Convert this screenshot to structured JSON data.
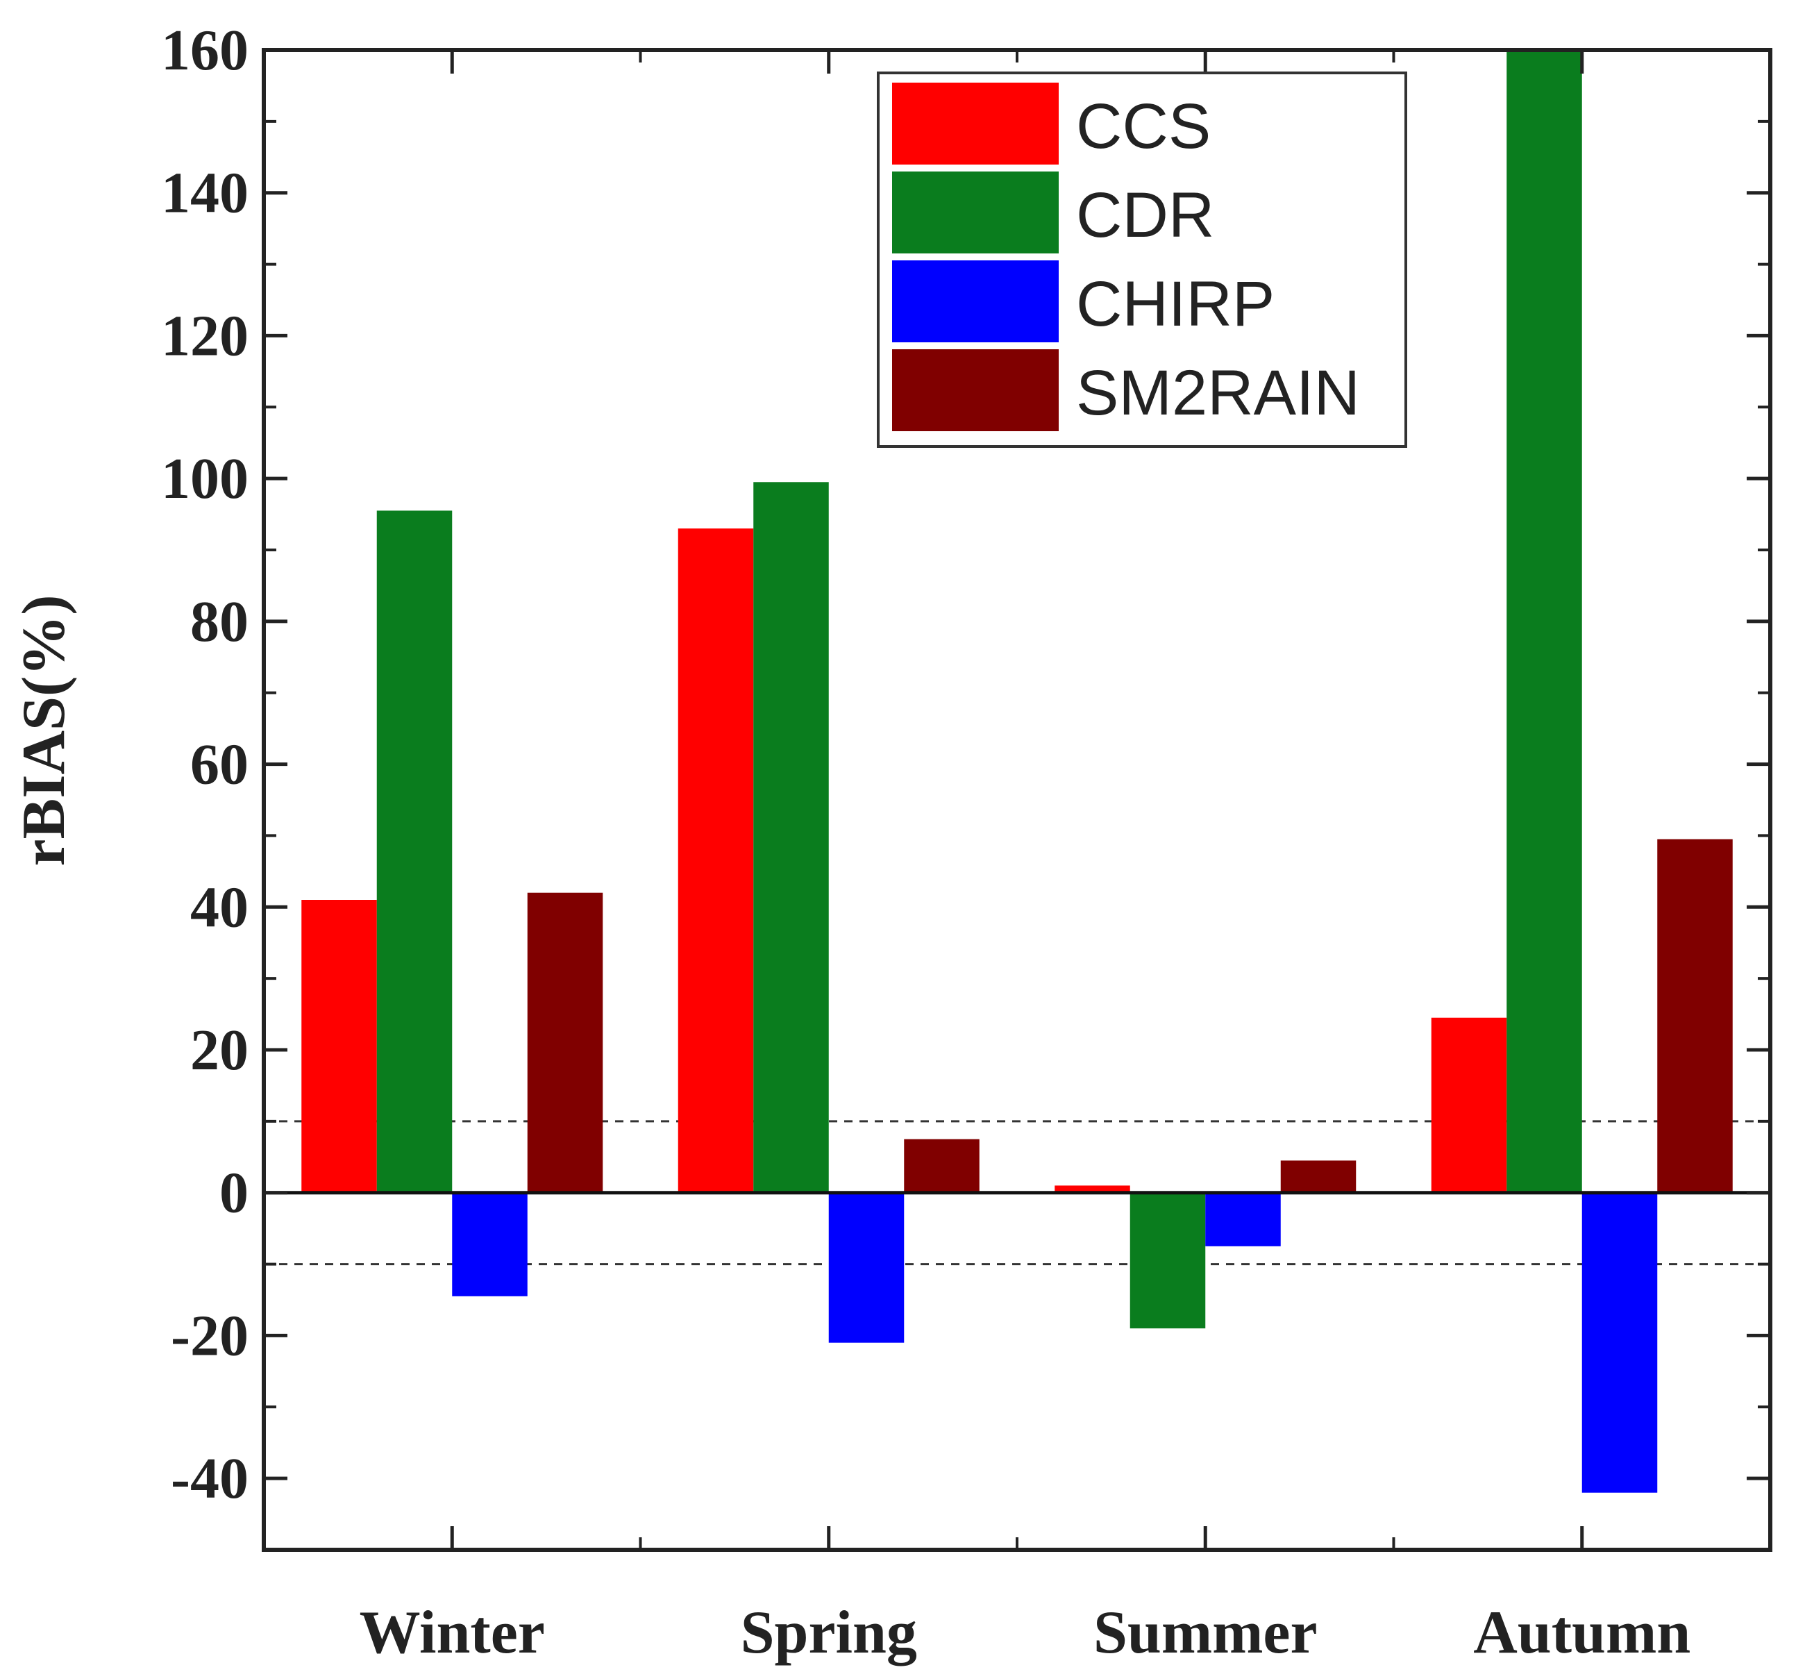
{
  "chart_data": {
    "type": "bar",
    "categories": [
      "Winter",
      "Spring",
      "Summer",
      "Autumn"
    ],
    "series": [
      {
        "name": "CCS",
        "color": "#ff0000",
        "values": [
          41,
          93,
          1,
          24.5
        ]
      },
      {
        "name": "CDR",
        "color": "#0a7d1e",
        "values": [
          95.5,
          99.5,
          -19,
          160
        ]
      },
      {
        "name": "CHIRP",
        "color": "#0000ff",
        "values": [
          -14.5,
          -21,
          -7.5,
          -42
        ]
      },
      {
        "name": "SM2RAIN",
        "color": "#800000",
        "values": [
          42,
          7.5,
          4.5,
          49.5
        ]
      }
    ],
    "ylabel": "rBIAS(%)",
    "xlabel": "",
    "ylim": [
      -50,
      160
    ],
    "yticks": [
      -40,
      -20,
      0,
      20,
      40,
      60,
      80,
      100,
      120,
      140,
      160
    ],
    "reference_lines": [
      10,
      -10
    ],
    "legend_position": "top-right",
    "grid": false
  }
}
